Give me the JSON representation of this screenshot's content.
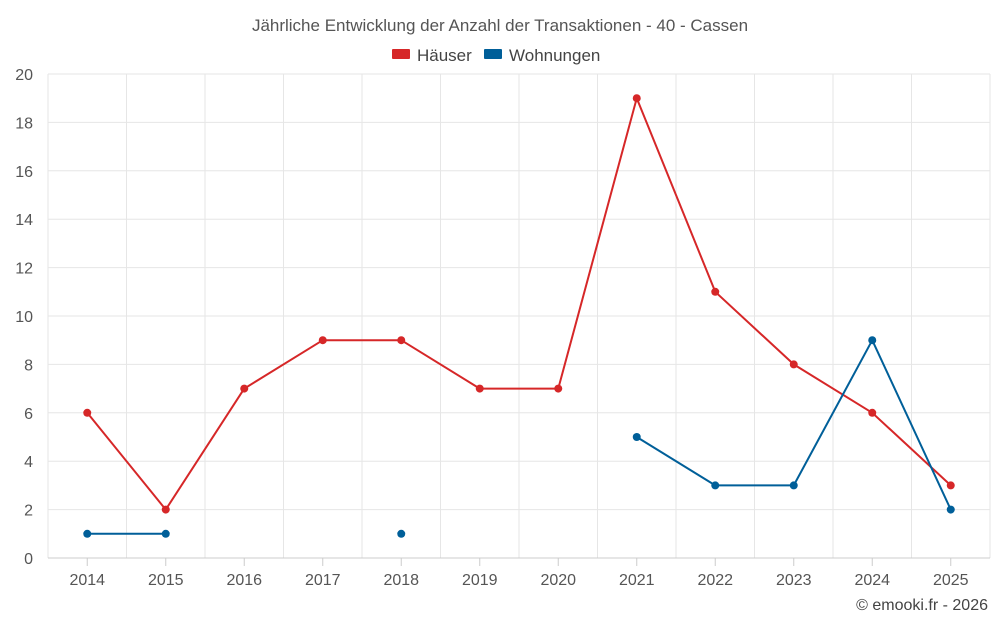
{
  "chart_data": {
    "type": "line",
    "title": "Jährliche Entwicklung der Anzahl der Transaktionen - 40 - Cassen",
    "categories": [
      "2014",
      "2015",
      "2016",
      "2017",
      "2018",
      "2019",
      "2020",
      "2021",
      "2022",
      "2023",
      "2024",
      "2025"
    ],
    "ylim": [
      0,
      20
    ],
    "yticks": [
      "0",
      "2",
      "4",
      "6",
      "8",
      "10",
      "12",
      "14",
      "16",
      "18",
      "20"
    ],
    "grid": true,
    "legend_position": "top-center",
    "series": [
      {
        "name": "Häuser",
        "color": "#d62728",
        "values": [
          6,
          2,
          7,
          9,
          9,
          7,
          7,
          19,
          11,
          8,
          6,
          3
        ]
      },
      {
        "name": "Wohnungen",
        "color": "#005f99",
        "values": [
          1,
          1,
          null,
          null,
          1,
          null,
          null,
          5,
          3,
          3,
          9,
          2
        ]
      }
    ],
    "credit": "© emooki.fr - 2026"
  }
}
